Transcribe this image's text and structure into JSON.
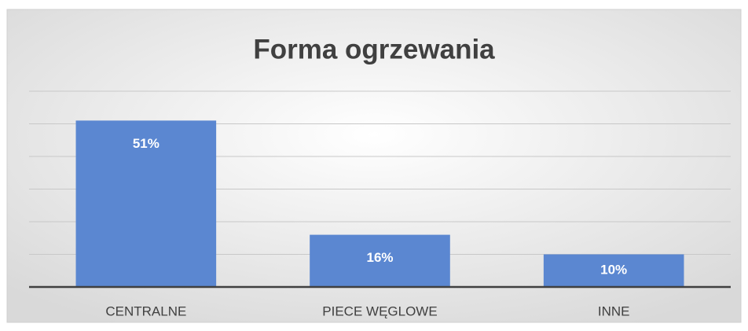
{
  "chart_data": {
    "type": "bar",
    "title": "Forma ogrzewania",
    "categories": [
      "CENTRALNE",
      "PIECE WĘGLOWE",
      "INNE"
    ],
    "values": [
      51,
      16,
      10
    ],
    "value_labels": [
      "51%",
      "16%",
      "10%"
    ],
    "color": "#5b87d1",
    "ylim": [
      0,
      60
    ],
    "yticks": [
      0,
      10,
      20,
      30,
      40,
      50,
      60
    ],
    "grid": true
  }
}
